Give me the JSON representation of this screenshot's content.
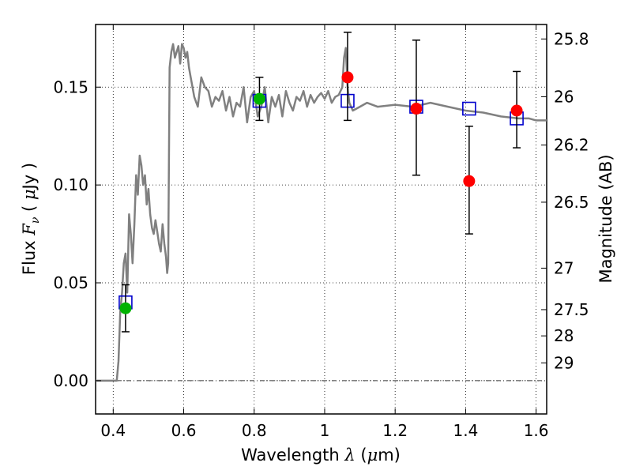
{
  "chart_data": {
    "type": "scatter",
    "xlabel": "Wavelength λ (μm)",
    "ylabel": "Flux F_ν (μJy)",
    "ylabel_right": "Magnitude (AB)",
    "xlim": [
      0.35,
      1.63
    ],
    "ylim": [
      -0.017,
      0.182
    ],
    "x_ticks": [
      {
        "value": 0.4,
        "label": "0.4"
      },
      {
        "value": 0.6,
        "label": "0.6"
      },
      {
        "value": 0.8,
        "label": "0.8"
      },
      {
        "value": 1.0,
        "label": "1"
      },
      {
        "value": 1.2,
        "label": "1.2"
      },
      {
        "value": 1.4,
        "label": "1.4"
      },
      {
        "value": 1.6,
        "label": "1.6"
      }
    ],
    "y_ticks": [
      {
        "value": 0.0,
        "label": "0.00"
      },
      {
        "value": 0.05,
        "label": "0.05"
      },
      {
        "value": 0.1,
        "label": "0.10"
      },
      {
        "value": 0.15,
        "label": "0.15"
      }
    ],
    "right_ticks": [
      {
        "flux": 0.1746,
        "label": "25.8"
      },
      {
        "flux": 0.1451,
        "label": "26"
      },
      {
        "flux": 0.1204,
        "label": "26.2"
      },
      {
        "flux": 0.0912,
        "label": "26.5"
      },
      {
        "flux": 0.0575,
        "label": "27"
      },
      {
        "flux": 0.0363,
        "label": "27.5"
      },
      {
        "flux": 0.0229,
        "label": "28"
      },
      {
        "flux": 0.0091,
        "label": "29"
      }
    ],
    "grid": true,
    "zero_line": true,
    "model_sed": {
      "color": "#808080",
      "x": [
        0.35,
        0.41,
        0.415,
        0.42,
        0.425,
        0.43,
        0.435,
        0.44,
        0.445,
        0.45,
        0.455,
        0.46,
        0.465,
        0.47,
        0.475,
        0.48,
        0.485,
        0.49,
        0.495,
        0.5,
        0.505,
        0.51,
        0.515,
        0.52,
        0.525,
        0.53,
        0.535,
        0.54,
        0.545,
        0.55,
        0.553,
        0.556,
        0.56,
        0.565,
        0.57,
        0.575,
        0.58,
        0.585,
        0.59,
        0.595,
        0.6,
        0.605,
        0.61,
        0.615,
        0.62,
        0.63,
        0.64,
        0.65,
        0.66,
        0.67,
        0.68,
        0.69,
        0.7,
        0.71,
        0.72,
        0.73,
        0.74,
        0.75,
        0.76,
        0.77,
        0.78,
        0.79,
        0.8,
        0.81,
        0.82,
        0.83,
        0.84,
        0.85,
        0.86,
        0.87,
        0.88,
        0.89,
        0.9,
        0.91,
        0.92,
        0.93,
        0.94,
        0.95,
        0.96,
        0.97,
        0.98,
        0.99,
        1.0,
        1.01,
        1.02,
        1.03,
        1.04,
        1.05,
        1.055,
        1.06,
        1.065,
        1.07,
        1.08,
        1.1,
        1.12,
        1.15,
        1.2,
        1.25,
        1.3,
        1.35,
        1.4,
        1.45,
        1.5,
        1.55,
        1.58,
        1.6,
        1.63
      ],
      "y": [
        0.0,
        0.0,
        0.01,
        0.035,
        0.045,
        0.06,
        0.065,
        0.045,
        0.085,
        0.075,
        0.06,
        0.08,
        0.105,
        0.095,
        0.115,
        0.11,
        0.1,
        0.105,
        0.09,
        0.098,
        0.085,
        0.078,
        0.075,
        0.082,
        0.076,
        0.07,
        0.066,
        0.08,
        0.07,
        0.063,
        0.055,
        0.06,
        0.16,
        0.168,
        0.172,
        0.165,
        0.168,
        0.171,
        0.162,
        0.172,
        0.17,
        0.165,
        0.168,
        0.16,
        0.155,
        0.145,
        0.14,
        0.155,
        0.15,
        0.148,
        0.14,
        0.145,
        0.143,
        0.148,
        0.138,
        0.145,
        0.135,
        0.142,
        0.14,
        0.15,
        0.132,
        0.145,
        0.148,
        0.135,
        0.14,
        0.15,
        0.132,
        0.145,
        0.14,
        0.146,
        0.135,
        0.148,
        0.142,
        0.138,
        0.145,
        0.143,
        0.148,
        0.14,
        0.146,
        0.142,
        0.145,
        0.147,
        0.144,
        0.148,
        0.142,
        0.145,
        0.146,
        0.15,
        0.165,
        0.17,
        0.15,
        0.142,
        0.138,
        0.14,
        0.142,
        0.14,
        0.141,
        0.14,
        0.142,
        0.14,
        0.138,
        0.137,
        0.135,
        0.134,
        0.134,
        0.133,
        0.133
      ]
    },
    "model_photometry": {
      "marker": "open-square",
      "color": "#0000cc",
      "points": [
        {
          "x": 0.435,
          "y": 0.04
        },
        {
          "x": 0.815,
          "y": 0.143
        },
        {
          "x": 1.065,
          "y": 0.143
        },
        {
          "x": 1.26,
          "y": 0.14
        },
        {
          "x": 1.41,
          "y": 0.139
        },
        {
          "x": 1.545,
          "y": 0.134
        }
      ]
    },
    "observed_detections": {
      "marker": "filled-circle",
      "color": "#00b300",
      "points": [
        {
          "x": 0.435,
          "y": 0.037,
          "err_low": 0.025,
          "err_high": 0.049
        },
        {
          "x": 0.815,
          "y": 0.144,
          "err_low": 0.133,
          "err_high": 0.155
        }
      ]
    },
    "observed_other": {
      "marker": "filled-circle",
      "color": "#ff0000",
      "points": [
        {
          "x": 1.065,
          "y": 0.155,
          "err_low": 0.133,
          "err_high": 0.178
        },
        {
          "x": 1.26,
          "y": 0.139,
          "err_low": 0.105,
          "err_high": 0.174
        },
        {
          "x": 1.41,
          "y": 0.102,
          "err_low": 0.075,
          "err_high": 0.13
        },
        {
          "x": 1.545,
          "y": 0.138,
          "err_low": 0.119,
          "err_high": 0.158
        }
      ]
    }
  }
}
